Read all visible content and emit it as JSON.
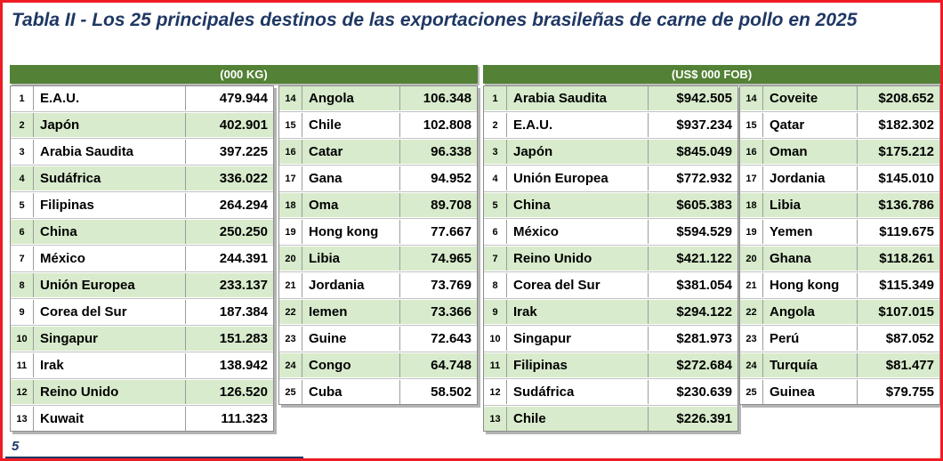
{
  "page": {
    "title": "Tabla II - Los 25 principales destinos de las exportaciones brasileñas de carne de pollo en 2025",
    "page_number": "5"
  },
  "colors": {
    "frame_red": "#ee1c25",
    "header_green": "#538135",
    "band_green": "#d8ebcc",
    "title_navy": "#1f3864"
  },
  "kg_section": {
    "header": "(000 KG)",
    "col_a": {
      "first_row_green": false,
      "rows": [
        {
          "rank": "1",
          "name": "E.A.U.",
          "value": "479.944"
        },
        {
          "rank": "2",
          "name": "Japón",
          "value": "402.901"
        },
        {
          "rank": "3",
          "name": "Arabia Saudita",
          "value": "397.225"
        },
        {
          "rank": "4",
          "name": "Sudáfrica",
          "value": "336.022"
        },
        {
          "rank": "5",
          "name": "Filipinas",
          "value": "264.294"
        },
        {
          "rank": "6",
          "name": "China",
          "value": "250.250"
        },
        {
          "rank": "7",
          "name": "México",
          "value": "244.391"
        },
        {
          "rank": "8",
          "name": "Unión Europea",
          "value": "233.137"
        },
        {
          "rank": "9",
          "name": "Corea del Sur",
          "value": "187.384"
        },
        {
          "rank": "10",
          "name": "Singapur",
          "value": "151.283"
        },
        {
          "rank": "11",
          "name": "Irak",
          "value": "138.942"
        },
        {
          "rank": "12",
          "name": "Reino Unido",
          "value": "126.520"
        },
        {
          "rank": "13",
          "name": "Kuwait",
          "value": "111.323"
        }
      ]
    },
    "col_b": {
      "first_row_green": true,
      "rows": [
        {
          "rank": "14",
          "name": "Angola",
          "value": "106.348"
        },
        {
          "rank": "15",
          "name": "Chile",
          "value": "102.808"
        },
        {
          "rank": "16",
          "name": "Catar",
          "value": "96.338"
        },
        {
          "rank": "17",
          "name": "Gana",
          "value": "94.952"
        },
        {
          "rank": "18",
          "name": "Oma",
          "value": "89.708"
        },
        {
          "rank": "19",
          "name": "Hong kong",
          "value": "77.667"
        },
        {
          "rank": "20",
          "name": "Libia",
          "value": "74.965"
        },
        {
          "rank": "21",
          "name": "Jordania",
          "value": "73.769"
        },
        {
          "rank": "22",
          "name": "Iemen",
          "value": "73.366"
        },
        {
          "rank": "23",
          "name": "Guine",
          "value": "72.643"
        },
        {
          "rank": "24",
          "name": "Congo",
          "value": "64.748"
        },
        {
          "rank": "25",
          "name": "Cuba",
          "value": "58.502"
        }
      ]
    }
  },
  "fob_section": {
    "header": "(US$ 000 FOB)",
    "col_a": {
      "first_row_green": true,
      "rows": [
        {
          "rank": "1",
          "name": "Arabia Saudita",
          "value": "$942.505"
        },
        {
          "rank": "2",
          "name": "E.A.U.",
          "value": "$937.234"
        },
        {
          "rank": "3",
          "name": "Japón",
          "value": "$845.049"
        },
        {
          "rank": "4",
          "name": "Unión Europea",
          "value": "$772.932"
        },
        {
          "rank": "5",
          "name": "China",
          "value": "$605.383"
        },
        {
          "rank": "6",
          "name": "México",
          "value": "$594.529"
        },
        {
          "rank": "7",
          "name": "Reino Unido",
          "value": "$421.122"
        },
        {
          "rank": "8",
          "name": "Corea del Sur",
          "value": "$381.054"
        },
        {
          "rank": "9",
          "name": "Irak",
          "value": "$294.122"
        },
        {
          "rank": "10",
          "name": "Singapur",
          "value": "$281.973"
        },
        {
          "rank": "11",
          "name": "Filipinas",
          "value": "$272.684"
        },
        {
          "rank": "12",
          "name": "Sudáfrica",
          "value": "$230.639"
        },
        {
          "rank": "13",
          "name": "Chile",
          "value": "$226.391"
        }
      ]
    },
    "col_b": {
      "first_row_green": true,
      "rows": [
        {
          "rank": "14",
          "name": "Coveite",
          "value": "$208.652"
        },
        {
          "rank": "15",
          "name": "Qatar",
          "value": "$182.302"
        },
        {
          "rank": "16",
          "name": "Oman",
          "value": "$175.212"
        },
        {
          "rank": "17",
          "name": "Jordania",
          "value": "$145.010"
        },
        {
          "rank": "18",
          "name": "Libia",
          "value": "$136.786"
        },
        {
          "rank": "19",
          "name": "Yemen",
          "value": "$119.675"
        },
        {
          "rank": "20",
          "name": "Ghana",
          "value": "$118.261"
        },
        {
          "rank": "21",
          "name": "Hong kong",
          "value": "$115.349"
        },
        {
          "rank": "22",
          "name": "Angola",
          "value": "$107.015"
        },
        {
          "rank": "23",
          "name": "Perú",
          "value": "$87.052"
        },
        {
          "rank": "24",
          "name": "Turquía",
          "value": "$81.477"
        },
        {
          "rank": "25",
          "name": "Guinea",
          "value": "$79.755"
        }
      ]
    }
  }
}
